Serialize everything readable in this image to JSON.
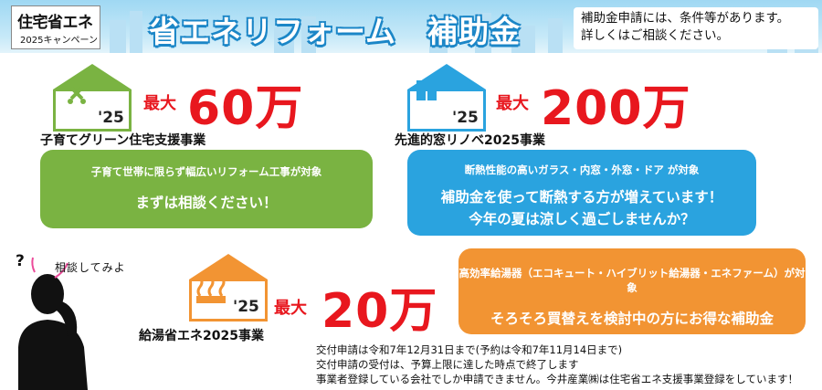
{
  "header": {
    "campaign_title": "住宅省エネ",
    "campaign_sub": "2025キャンペーン",
    "main_title": "省エネリフォーム　補助金",
    "note_line1": "補助金申請には、条件等があります。",
    "note_line2": "詳しくはご相談ください。"
  },
  "green": {
    "year": "'25",
    "max_label": "最大",
    "amount": "60万",
    "program": "子育てグリーン住宅支援事業",
    "pill_small": "子育て世帯に限らず幅広いリフォーム工事が対象",
    "pill_big": "まずは相談ください！",
    "color": "#7ab342"
  },
  "window": {
    "year": "'25",
    "max_label": "最大",
    "amount": "200万",
    "program": "先進的窓リノベ2025事業",
    "pill_small": "断熱性能の高いガラス・内窓・外窓・ドア が対象",
    "pill_line1": "補助金を使って断熱する方が増えています！",
    "pill_line2": "今年の夏は涼しく過ごしませんか？",
    "color": "#2aa3df"
  },
  "water": {
    "year": "'25",
    "max_label": "最大",
    "amount": "20万",
    "program": "給湯省エネ2025事業",
    "pill_small": "高効率給湯器（エコキュート・ハイブリット給湯器・エネファーム）が対象",
    "pill_big": "そろそろ買替えを検討中の方にお得な補助金",
    "color": "#f29433"
  },
  "consult": {
    "bubble": "相談してみよ",
    "question": "?"
  },
  "info": {
    "line1": "交付申請は令和7年12月31日まで(予約は令和7年11月14日まで)",
    "line2": "交付申請の受付は、予算上限に達した時点で終了します",
    "line3": "事業者登録している会社でしか申請できません。今井産業㈱は住宅省エネ支援事業登録をしています！"
  }
}
